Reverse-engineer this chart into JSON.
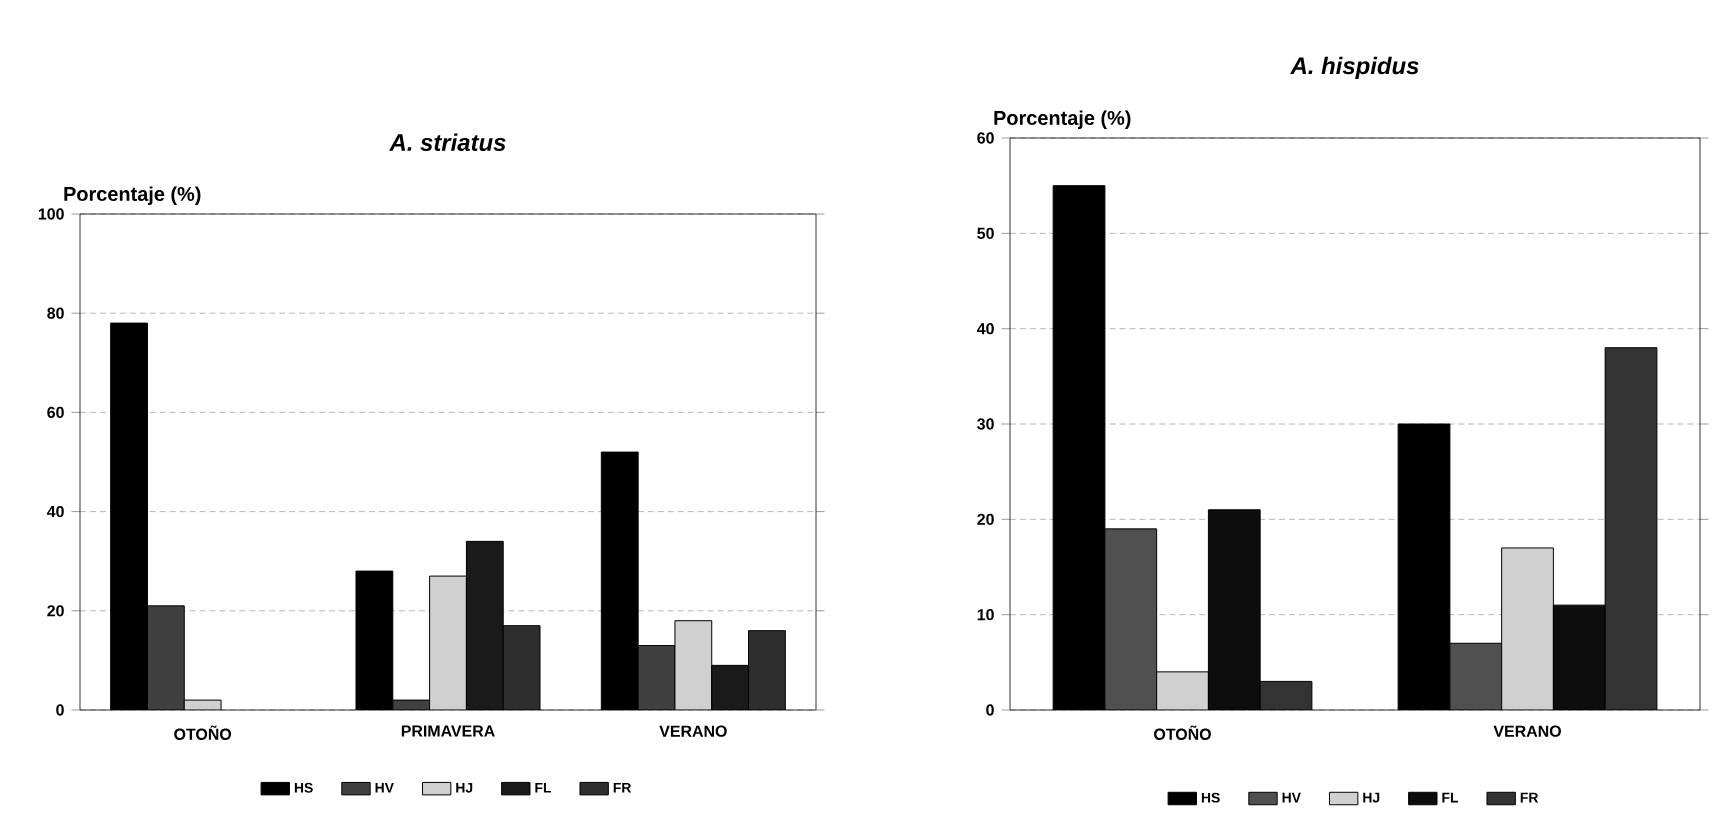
{
  "chart_data": [
    {
      "type": "bar",
      "title": "A. striatus",
      "ylabel": "Porcentaje (%)",
      "categories": [
        "OTOÑO",
        "PRIMAVERA",
        "VERANO"
      ],
      "series": [
        {
          "name": "HS",
          "color": "#000000",
          "values": [
            78,
            28,
            52
          ]
        },
        {
          "name": "HV",
          "color": "#404040",
          "values": [
            21,
            2,
            13
          ]
        },
        {
          "name": "HJ",
          "color": "#d0d0d0",
          "values": [
            2,
            27,
            18
          ]
        },
        {
          "name": "FL",
          "color": "#1a1a1a",
          "values": [
            null,
            34,
            9
          ]
        },
        {
          "name": "FR",
          "color": "#2e2e2e",
          "values": [
            null,
            17,
            16
          ]
        }
      ],
      "ylim": [
        0,
        100
      ],
      "yticks": [
        0,
        20,
        40,
        60,
        80,
        100
      ],
      "grid": "y",
      "legend": "bottom"
    },
    {
      "type": "bar",
      "title": "A. hispidus",
      "ylabel": "Porcentaje (%)",
      "categories": [
        "OTOÑO",
        "VERANO"
      ],
      "series": [
        {
          "name": "HS",
          "color": "#000000",
          "values": [
            55,
            30
          ]
        },
        {
          "name": "HV",
          "color": "#505050",
          "values": [
            19,
            7
          ]
        },
        {
          "name": "HJ",
          "color": "#d0d0d0",
          "values": [
            4,
            17
          ]
        },
        {
          "name": "FL",
          "color": "#0d0d0d",
          "values": [
            21,
            11
          ]
        },
        {
          "name": "FR",
          "color": "#333333",
          "values": [
            3,
            38
          ]
        }
      ],
      "ylim": [
        0,
        60
      ],
      "yticks": [
        0,
        10,
        20,
        30,
        40,
        50,
        60
      ],
      "grid": "y",
      "legend": "bottom"
    }
  ]
}
